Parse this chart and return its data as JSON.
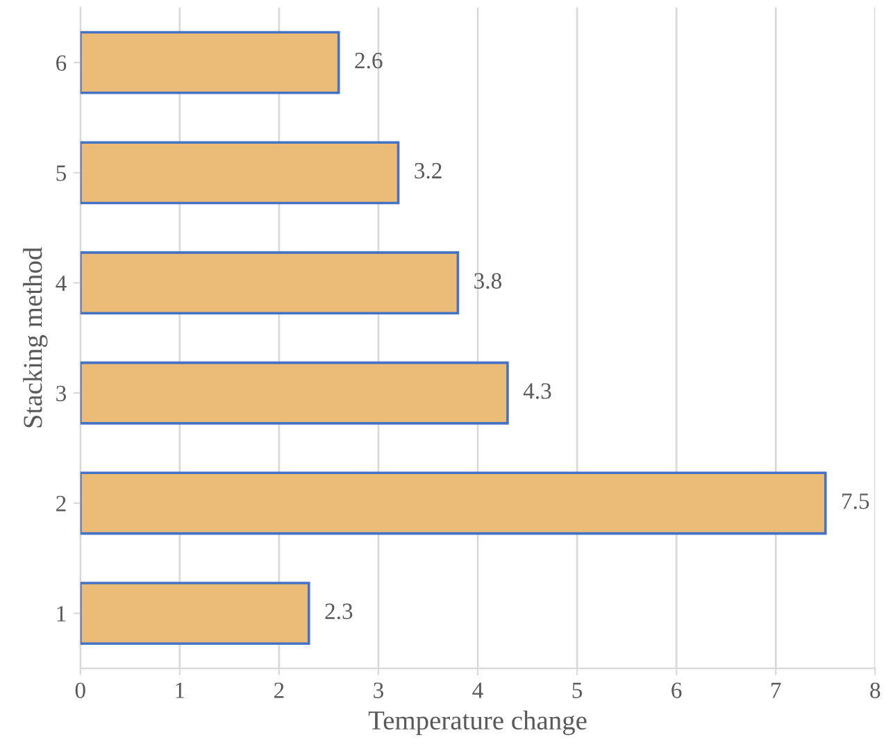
{
  "chart_data": {
    "type": "bar",
    "orientation": "horizontal",
    "categories": [
      "6",
      "5",
      "4",
      "3",
      "2",
      "1"
    ],
    "values": [
      2.6,
      3.2,
      3.8,
      4.3,
      7.5,
      2.3
    ],
    "color": "#ebbb78",
    "xlabel": "Temperature change",
    "ylabel": "Stacking method",
    "xlim": [
      0,
      8
    ],
    "xticks": [
      0,
      1,
      2,
      3,
      4,
      5,
      6,
      7,
      8
    ],
    "grid": "x",
    "data_labels": true
  }
}
